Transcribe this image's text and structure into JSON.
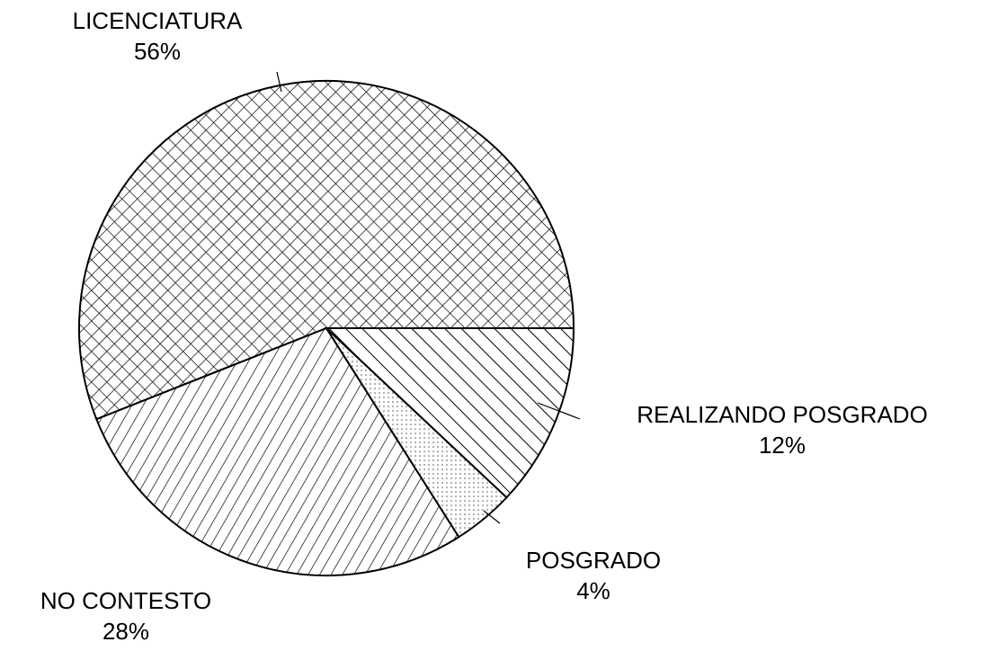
{
  "chart_data": {
    "type": "pie",
    "categories": [
      "LICENCIATURA",
      "NO CONTESTO",
      "POSGRADO",
      "REALIZANDO POSGRADO"
    ],
    "values": [
      56,
      28,
      4,
      12
    ],
    "value_labels": [
      "56%",
      "28%",
      "4%",
      "12%"
    ],
    "patterns": [
      "crosshatch",
      "forward-diagonal",
      "dots",
      "back-diagonal"
    ],
    "start_angle": 0,
    "direction": "counterclockwise"
  }
}
